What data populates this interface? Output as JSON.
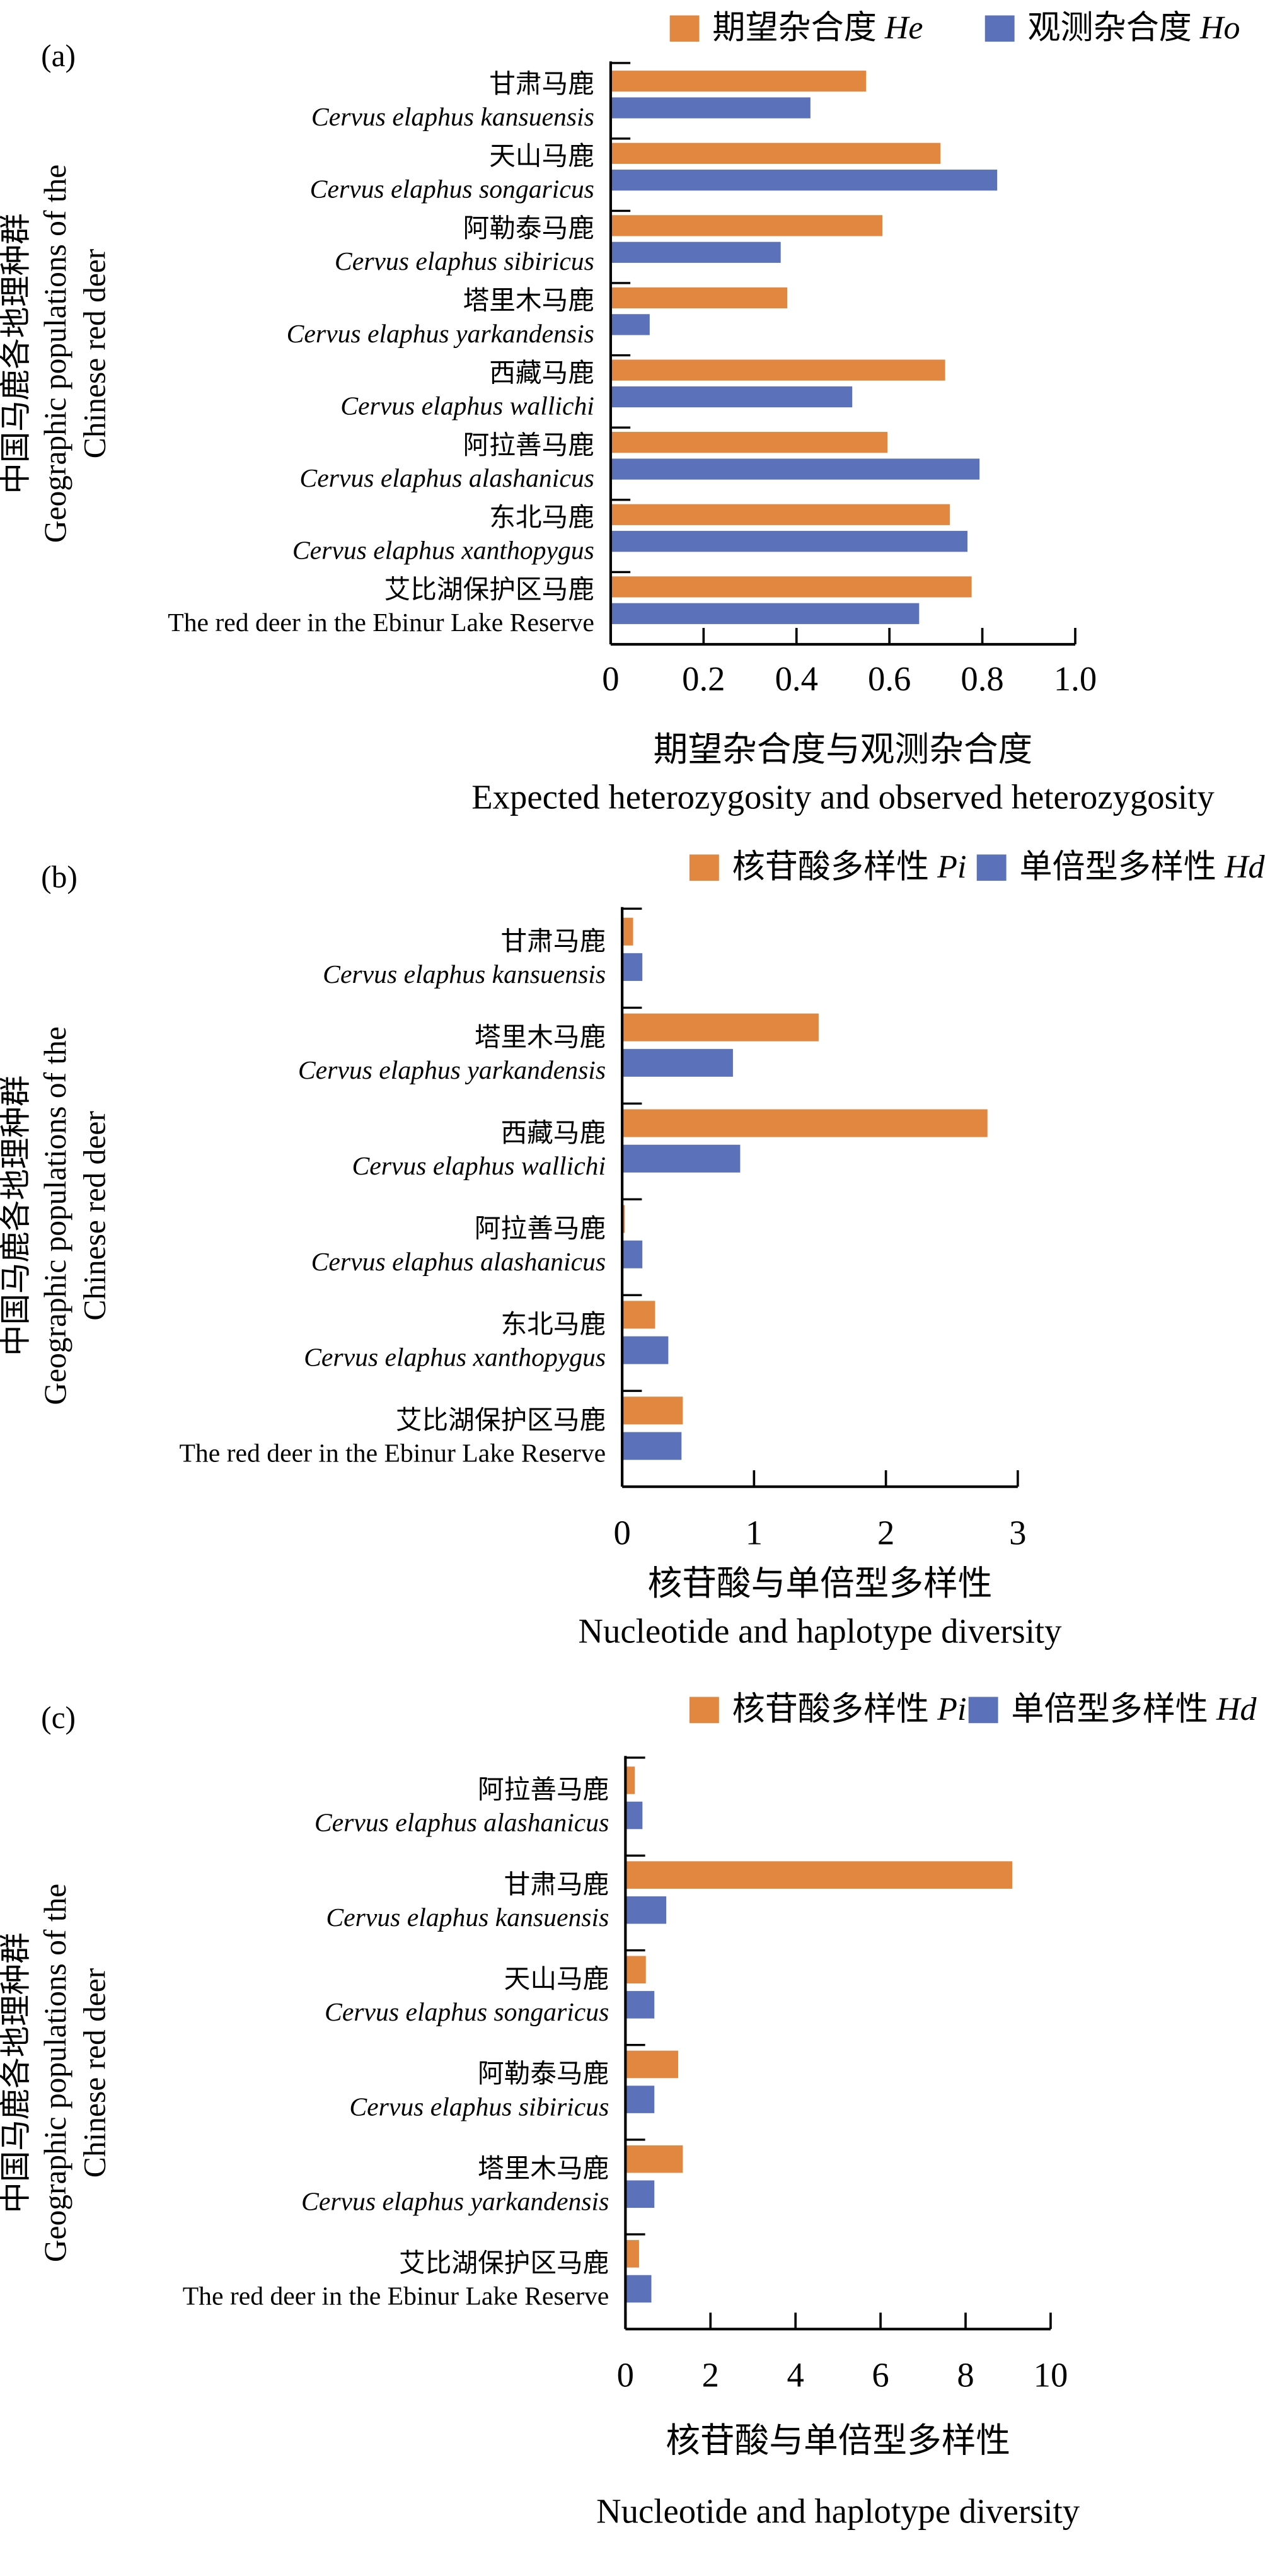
{
  "colors": {
    "series1": "#E2873F",
    "series2": "#5B71BA",
    "axis": "#000000"
  },
  "chart_data": [
    {
      "type": "bar",
      "orientation": "horizontal",
      "panel_label": "(a)",
      "legend_placement": "top",
      "categories": [
        {
          "cn": "甘肃马鹿",
          "latin": "Cervus elaphus kansuensis",
          "italic": true
        },
        {
          "cn": "天山马鹿",
          "latin": "Cervus elaphus songaricus",
          "italic": true
        },
        {
          "cn": "阿勒泰马鹿",
          "latin": "Cervus elaphus sibiricus",
          "italic": true
        },
        {
          "cn": "塔里木马鹿",
          "latin": "Cervus elaphus yarkandensis",
          "italic": true
        },
        {
          "cn": "西藏马鹿",
          "latin": "Cervus elaphus wallichi",
          "italic": true
        },
        {
          "cn": "阿拉善马鹿",
          "latin": "Cervus elaphus alashanicus",
          "italic": true
        },
        {
          "cn": "东北马鹿",
          "latin": "Cervus elaphus xanthopygus",
          "italic": true
        },
        {
          "cn": "艾比湖保护区马鹿",
          "latin": "The red deer in the Ebinur Lake Reserve",
          "italic": false
        }
      ],
      "series": [
        {
          "name": "期望杂合度",
          "symbol": "He",
          "values": [
            0.55,
            0.71,
            0.585,
            0.38,
            0.72,
            0.596,
            0.73,
            0.777
          ]
        },
        {
          "name": "观测杂合度",
          "symbol": "Ho",
          "values": [
            0.43,
            0.832,
            0.366,
            0.084,
            0.52,
            0.794,
            0.768,
            0.664
          ]
        }
      ],
      "xlim": [
        0,
        1.0
      ],
      "xticks": [
        "0",
        "0.2",
        "0.4",
        "0.6",
        "0.8",
        "1.0"
      ],
      "xlabel": [
        "期望杂合度与观测杂合度",
        "Expected heterozygosity and observed heterozygosity"
      ],
      "ylabel": [
        "中国马鹿各地理种群",
        "Geographic populations of the",
        "Chinese red deer"
      ],
      "grid": false
    },
    {
      "type": "bar",
      "orientation": "horizontal",
      "panel_label": "(b)",
      "legend_placement": "top",
      "categories": [
        {
          "cn": "甘肃马鹿",
          "latin": "Cervus elaphus kansuensis",
          "italic": true
        },
        {
          "cn": "塔里木马鹿",
          "latin": "Cervus elaphus yarkandensis",
          "italic": true
        },
        {
          "cn": "西藏马鹿",
          "latin": "Cervus elaphus wallichi",
          "italic": true
        },
        {
          "cn": "阿拉善马鹿",
          "latin": "Cervus elaphus alashanicus",
          "italic": true
        },
        {
          "cn": "东北马鹿",
          "latin": "Cervus elaphus xanthopygus",
          "italic": true
        },
        {
          "cn": "艾比湖保护区马鹿",
          "latin": "The red deer in the Ebinur Lake Reserve",
          "italic": false
        }
      ],
      "series": [
        {
          "name": "核苷酸多样性",
          "symbol": "Pi",
          "values": [
            0.083,
            1.49,
            2.77,
            0.02,
            0.25,
            0.46
          ]
        },
        {
          "name": "单倍型多样性",
          "symbol": "Hd",
          "values": [
            0.153,
            0.84,
            0.895,
            0.153,
            0.35,
            0.45
          ]
        }
      ],
      "xlim": [
        0,
        3
      ],
      "xticks": [
        "0",
        "1",
        "2",
        "3"
      ],
      "xlabel": [
        "核苷酸与单倍型多样性",
        "Nucleotide and haplotype diversity"
      ],
      "ylabel": [
        "中国马鹿各地理种群",
        "Geographic populations of the",
        "Chinese red deer"
      ],
      "grid": false
    },
    {
      "type": "bar",
      "orientation": "horizontal",
      "panel_label": "(c)",
      "legend_placement": "top",
      "categories": [
        {
          "cn": "阿拉善马鹿",
          "latin": "Cervus elaphus alashanicus",
          "italic": true
        },
        {
          "cn": "甘肃马鹿",
          "latin": "Cervus elaphus kansuensis",
          "italic": true
        },
        {
          "cn": "天山马鹿",
          "latin": "Cervus elaphus songaricus",
          "italic": true
        },
        {
          "cn": "阿勒泰马鹿",
          "latin": "Cervus elaphus sibiricus",
          "italic": true
        },
        {
          "cn": "塔里木马鹿",
          "latin": "Cervus elaphus yarkandensis",
          "italic": true
        },
        {
          "cn": "艾比湖保护区马鹿",
          "latin": "The red deer in the Ebinur Lake Reserve",
          "italic": false
        }
      ],
      "series": [
        {
          "name": "核苷酸多样性",
          "symbol": "Pi",
          "values": [
            0.22,
            9.1,
            0.48,
            1.24,
            1.35,
            0.32
          ]
        },
        {
          "name": "单倍型多样性",
          "symbol": "Hd",
          "values": [
            0.4,
            0.96,
            0.68,
            0.68,
            0.68,
            0.61
          ]
        }
      ],
      "xlim": [
        0,
        10
      ],
      "xticks": [
        "0",
        "2",
        "4",
        "6",
        "8",
        "10"
      ],
      "xlabel": [
        "核苷酸与单倍型多样性",
        "Nucleotide and haplotype diversity"
      ],
      "ylabel": [
        "中国马鹿各地理种群",
        "Geographic populations of the",
        "Chinese red deer"
      ],
      "grid": false
    }
  ]
}
